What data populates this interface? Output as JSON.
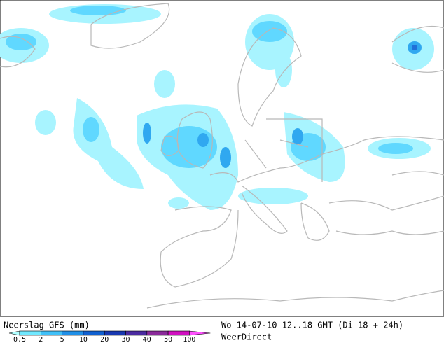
{
  "header": {
    "title": "Neerslag GFS (mm)",
    "valid_time": "Wo 14-07-10 12..18 GMT (Di 18 + 24h)",
    "source": "WeerDirect"
  },
  "legend": {
    "labels": [
      "0.5",
      "2",
      "5",
      "10",
      "20",
      "30",
      "40",
      "50",
      "100"
    ],
    "colors": [
      "#b0ffff",
      "#70e8ff",
      "#40c0f8",
      "#2090e8",
      "#1060d0",
      "#1838b0",
      "#4a2aa0",
      "#8a2a9a",
      "#d010c0",
      "#ff50ff"
    ]
  }
}
